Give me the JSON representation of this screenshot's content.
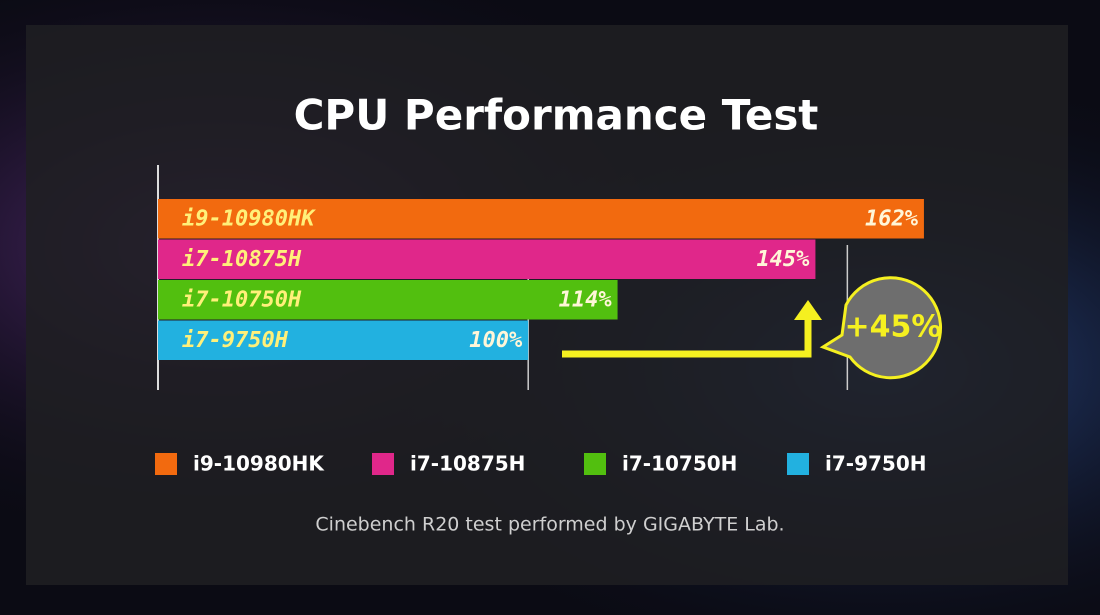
{
  "chart_data": {
    "type": "barh",
    "title": "CPU Performance Test",
    "categories": [
      "i9-10980HK",
      "i7-10875H",
      "i7-10750H",
      "i7-9750H"
    ],
    "values": [
      162,
      145,
      114,
      100
    ],
    "value_labels": [
      "162%",
      "145%",
      "114%",
      "100%"
    ],
    "colors": [
      "#f26a0f",
      "#e0278a",
      "#52bf0f",
      "#22b1e0"
    ],
    "xlim": [
      42,
      170
    ],
    "grid_lines": [
      100,
      150
    ],
    "annotation": "+45%",
    "legend": true,
    "footnote": "Cinebench R20 test performed by GIGABYTE Lab."
  }
}
